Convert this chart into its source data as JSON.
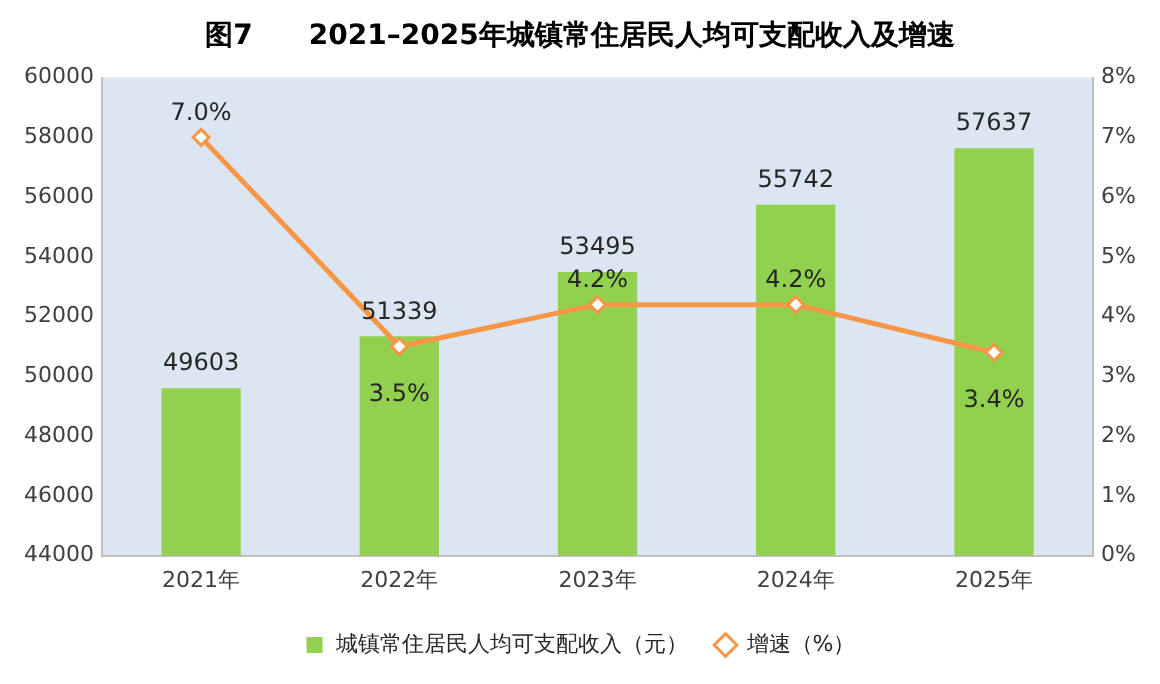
{
  "chart_data": {
    "type": "bar",
    "title": "图7　　2021–2025年城镇常住居民人均可支配收入及增速",
    "categories": [
      "2021年",
      "2022年",
      "2023年",
      "2024年",
      "2025年"
    ],
    "series": [
      {
        "name": "城镇常住居民人均可支配收入（元）",
        "color": "#92d050",
        "values": [
          49603,
          51339,
          53495,
          55742,
          57637
        ],
        "value_labels": [
          "49603",
          "51339",
          "53495",
          "55742",
          "57637"
        ]
      },
      {
        "name": "增速（%）",
        "type": "line",
        "axis": "y2",
        "color": "#f79646",
        "values": [
          7.0,
          3.5,
          4.2,
          4.2,
          3.4
        ],
        "value_labels": [
          "7.0%",
          "3.5%",
          "4.2%",
          "4.2%",
          "3.4%"
        ]
      }
    ],
    "ylim": [
      44000,
      60000
    ],
    "yticks": [
      44000,
      46000,
      48000,
      50000,
      52000,
      54000,
      56000,
      58000,
      60000
    ],
    "y2lim": [
      0,
      8
    ],
    "y2ticks": [
      {
        "value": 0,
        "label": "0%"
      },
      {
        "value": 1,
        "label": "1%"
      },
      {
        "value": 2,
        "label": "2%"
      },
      {
        "value": 3,
        "label": "3%"
      },
      {
        "value": 4,
        "label": "4%"
      },
      {
        "value": 5,
        "label": "5%"
      },
      {
        "value": 6,
        "label": "6%"
      },
      {
        "value": 7,
        "label": "7%"
      },
      {
        "value": 8,
        "label": "8%"
      }
    ],
    "marker": "diamond",
    "line_style": "solid",
    "legend": "bottom",
    "grid": false
  }
}
